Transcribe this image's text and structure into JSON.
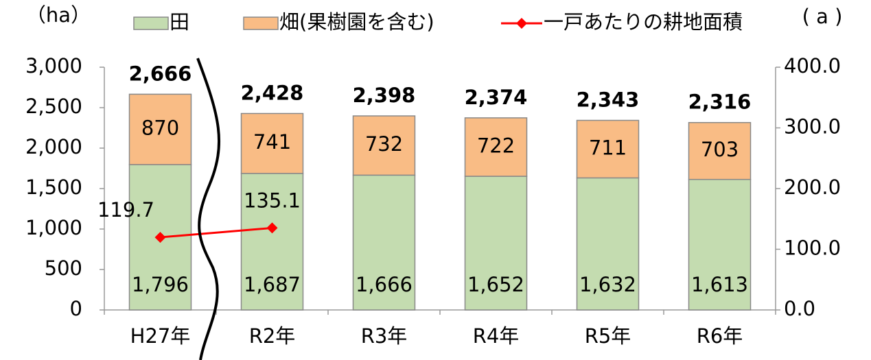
{
  "chart_data": {
    "type": "stacked-bar-line",
    "y_label": "（ha）",
    "y2_label": "( a )",
    "categories": [
      "H27年",
      "R2年",
      "R3年",
      "R4年",
      "R5年",
      "R6年"
    ],
    "series": [
      {
        "name": "田",
        "color": "#c4dcb0",
        "values": [
          1796,
          1687,
          1666,
          1652,
          1632,
          1613
        ],
        "value_labels": [
          "1,796",
          "1,687",
          "1,666",
          "1,652",
          "1,632",
          "1,613"
        ]
      },
      {
        "name": "畑(果樹園を含む)",
        "color": "#f9bc85",
        "values": [
          870,
          741,
          732,
          722,
          711,
          703
        ]
      },
      {
        "name": "一戸あたりの耕地面積",
        "color": "#ff0000",
        "type": "line",
        "axis": "y2",
        "values": [
          119.7,
          135.1,
          null,
          null,
          null,
          null
        ]
      }
    ],
    "totals": {
      "values": [
        2666,
        2428,
        2398,
        2374,
        2343,
        2316
      ],
      "value_labels": [
        "2,666",
        "2,428",
        "2,398",
        "2,374",
        "2,343",
        "2,316"
      ]
    },
    "ylim": [
      0,
      3000
    ],
    "yticks": [
      0,
      500,
      {
        "value": 1000,
        "label": "1,000"
      },
      {
        "value": 1500,
        "label": "1,500"
      },
      {
        "value": 2000,
        "label": "2,000"
      },
      {
        "value": 2500,
        "label": "2,500"
      },
      {
        "value": 3000,
        "label": "3,000"
      }
    ],
    "y2lim": [
      0,
      400
    ],
    "y2ticks": [
      {
        "value": 0,
        "label": "0.0"
      },
      {
        "value": 100,
        "label": "100.0"
      },
      {
        "value": 200,
        "label": "200.0"
      },
      {
        "value": 300,
        "label": "300.0"
      },
      {
        "value": 400,
        "label": "400.0"
      }
    ]
  }
}
